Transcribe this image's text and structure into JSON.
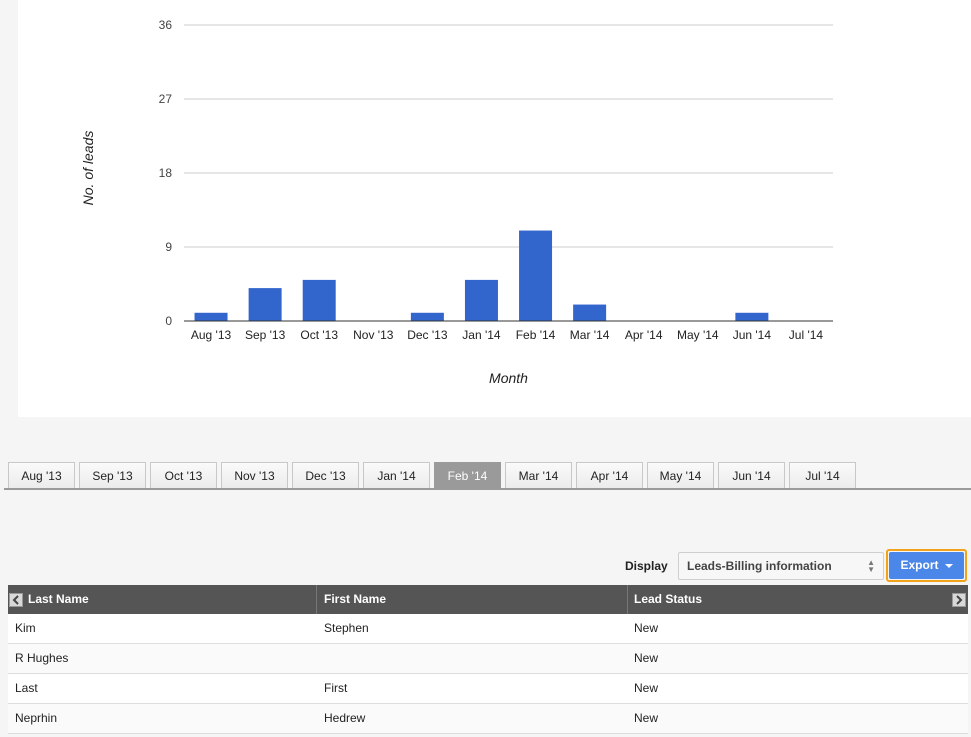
{
  "chart_data": {
    "type": "bar",
    "categories": [
      "Aug '13",
      "Sep '13",
      "Oct '13",
      "Nov '13",
      "Dec '13",
      "Jan '14",
      "Feb '14",
      "Mar '14",
      "Apr '14",
      "May '14",
      "Jun '14",
      "Jul '14"
    ],
    "values": [
      1,
      4,
      5,
      0,
      1,
      5,
      11,
      2,
      0,
      0,
      1,
      0
    ],
    "xlabel": "Month",
    "ylabel": "No. of leads",
    "ylim": [
      0,
      36
    ],
    "yticks": [
      "0",
      "9",
      "18",
      "27",
      "36"
    ],
    "grid": true,
    "bar_color": "#3366cc"
  },
  "tabs": {
    "active_index": 6,
    "items": [
      "Aug '13",
      "Sep '13",
      "Oct '13",
      "Nov '13",
      "Dec '13",
      "Jan '14",
      "Feb '14",
      "Mar '14",
      "Apr '14",
      "May '14",
      "Jun '14",
      "Jul '14"
    ]
  },
  "toolbar": {
    "display_label": "Display",
    "display_value": "Leads-Billing information",
    "export_label": "Export"
  },
  "table": {
    "columns": [
      "Last Name",
      "First Name",
      "Lead Status"
    ],
    "rows": [
      [
        "Kim",
        "Stephen",
        "New"
      ],
      [
        "R Hughes",
        "",
        "New"
      ],
      [
        "Last",
        "First",
        "New"
      ],
      [
        "Neprhin",
        "Hedrew",
        "New"
      ]
    ]
  },
  "icons": {
    "scroll_left": "chevron-left-icon",
    "scroll_right": "chevron-right-icon",
    "export_caret": "caret-down-icon",
    "select_arrows": "updown-arrows-icon"
  }
}
